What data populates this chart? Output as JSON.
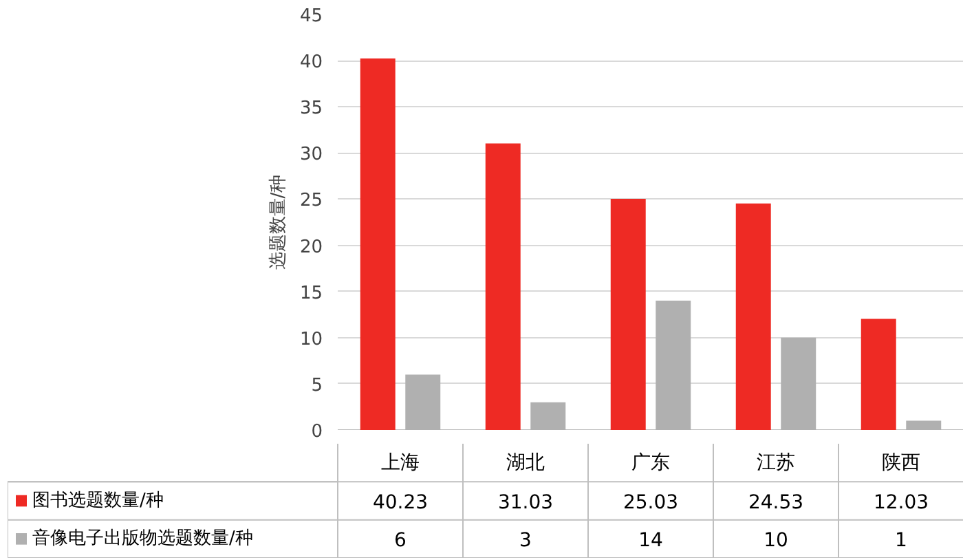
{
  "chart_data": {
    "type": "bar",
    "ylabel": "选题数量/种",
    "categories": [
      "上海",
      "湖北",
      "广东",
      "江苏",
      "陕西"
    ],
    "series": [
      {
        "name": "图书选题数量/种",
        "color": "#ee2a24",
        "values": [
          40.23,
          31.03,
          25.03,
          24.53,
          12.03
        ]
      },
      {
        "name": "音像电子出版物选题数量/种",
        "color": "#b0b0b0",
        "values": [
          6,
          3,
          14,
          10,
          1
        ]
      }
    ],
    "ylim": [
      0,
      45
    ],
    "yticks": [
      0,
      5,
      10,
      15,
      20,
      25,
      30,
      35,
      40,
      45
    ],
    "grid": "y",
    "legend": "bottom",
    "data_labels": true
  }
}
